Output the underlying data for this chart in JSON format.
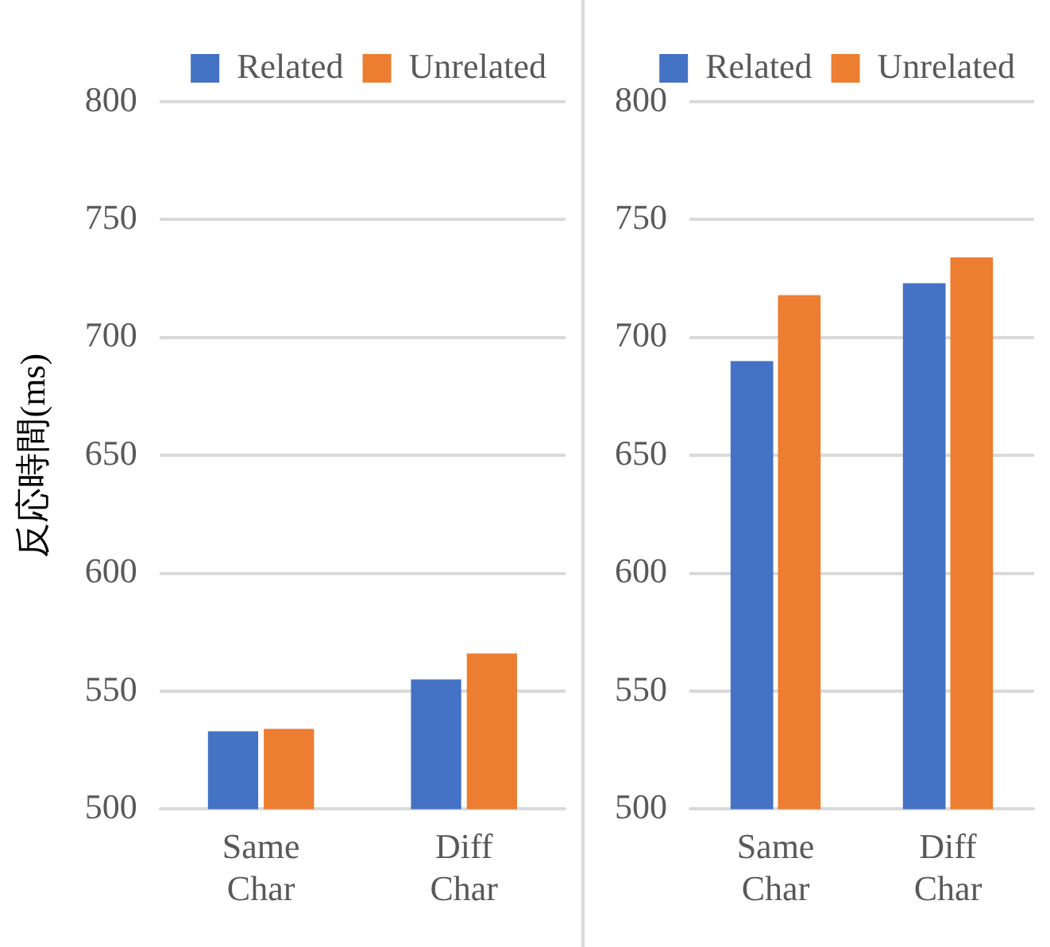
{
  "chart_data": [
    {
      "type": "bar",
      "ylabel": "反応時間(ms)",
      "categories": [
        "Same Char",
        "Diff Char"
      ],
      "series": [
        {
          "name": "Related",
          "color": "#4472c4",
          "values": [
            533,
            555
          ]
        },
        {
          "name": "Unrelated",
          "color": "#ed7d31",
          "values": [
            534,
            566
          ]
        }
      ],
      "ylim": [
        500,
        800
      ],
      "yticks": [
        500,
        550,
        600,
        650,
        700,
        750,
        800
      ],
      "grid": "y",
      "legend": "top"
    },
    {
      "type": "bar",
      "categories": [
        "Same Char",
        "Diff Char"
      ],
      "series": [
        {
          "name": "Related",
          "color": "#4472c4",
          "values": [
            690,
            723
          ]
        },
        {
          "name": "Unrelated",
          "color": "#ed7d31",
          "values": [
            718,
            734
          ]
        }
      ],
      "ylim": [
        500,
        800
      ],
      "yticks": [
        500,
        550,
        600,
        650,
        700,
        750,
        800
      ],
      "grid": "y",
      "legend": "top"
    }
  ]
}
